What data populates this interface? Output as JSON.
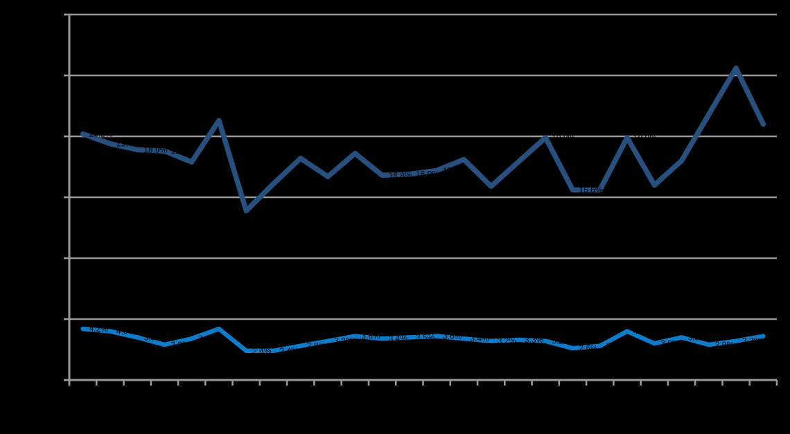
{
  "chart_data": {
    "type": "line",
    "title": "",
    "note": "All chart text (title, axis tick labels, data labels) is rendered in black over a transparent/black background and is not legible; only gridlines, ticks and the two line series are visible. Data labels occlude (cut out) parts of the lines and gridlines where they overlap.",
    "n_points": 26,
    "categories": [],
    "category_labels_visible": false,
    "axis_text_visible": false,
    "legend_position": "none",
    "ylim": [
      0,
      30
    ],
    "ytick_step": 5,
    "y_unit": "%",
    "grid": true,
    "background_color": "#000000",
    "grid_color": "#999999",
    "axis_color": "#999999",
    "data_label_color": "#000000",
    "series": [
      {
        "name": "dark-blue-series",
        "color": "#27507E",
        "values": [
          20.2,
          19.4,
          18.9,
          18.8,
          17.9,
          21.3,
          13.9,
          16.1,
          18.2,
          16.7,
          18.6,
          16.8,
          16.9,
          17.2,
          18.1,
          15.9,
          17.9,
          19.9,
          15.6,
          15.6,
          19.9,
          16.0,
          18.0,
          21.8,
          25.6,
          21.0
        ]
      },
      {
        "name": "light-blue-series",
        "color": "#0E7CCB",
        "values": [
          4.2,
          4.0,
          3.5,
          2.9,
          3.4,
          4.2,
          2.4,
          2.4,
          2.8,
          3.2,
          3.6,
          3.4,
          3.5,
          3.6,
          3.4,
          3.2,
          3.3,
          3.2,
          2.6,
          2.8,
          4.0,
          3.0,
          3.5,
          2.9,
          3.2,
          3.6
        ]
      }
    ]
  }
}
